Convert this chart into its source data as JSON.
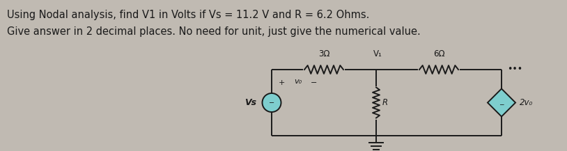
{
  "title_line1": "Using Nodal analysis, find V1 in Volts if Vs = 11.2 V and R = 6.2 Ohms.",
  "title_line2": "Give answer in 2 decimal places. No need for unit, just give the numerical value.",
  "bg_color": "#c0bab2",
  "text_color": "#1a1a1a",
  "title_fontsize": 10.5,
  "circ": {
    "vs_label": "Vs",
    "r3_label": "3Ω",
    "r6_label": "6Ω",
    "r_label": "R",
    "v1_label": "V₁",
    "vo_label": "v₀",
    "dep_label": "2v₀",
    "dots": "•••",
    "plus": "+",
    "minus": "−"
  },
  "vs_color": "#7ecece",
  "dep_color": "#7ecece",
  "lw": 1.4
}
